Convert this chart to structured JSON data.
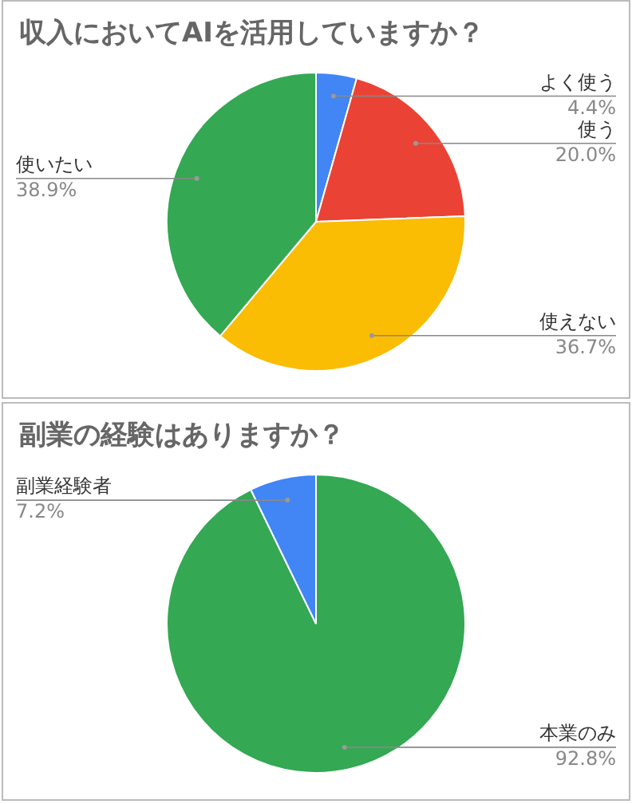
{
  "chart_data": [
    {
      "type": "pie",
      "title": "収入においてAIを活用していますか？",
      "categories": [
        "よく使う",
        "使う",
        "使えない",
        "使いたい"
      ],
      "values": [
        4.4,
        20.0,
        36.7,
        38.9
      ],
      "colors": [
        "#4285f4",
        "#ea4335",
        "#fbbc04",
        "#34a853"
      ],
      "value_labels": [
        "4.4%",
        "20.0%",
        "36.7%",
        "38.9%"
      ]
    },
    {
      "type": "pie",
      "title": "副業の経験はありますか？",
      "categories": [
        "本業のみ",
        "副業経験者"
      ],
      "values": [
        92.8,
        7.2
      ],
      "colors": [
        "#34a853",
        "#4285f4"
      ],
      "value_labels": [
        "92.8%",
        "7.2%"
      ]
    }
  ]
}
